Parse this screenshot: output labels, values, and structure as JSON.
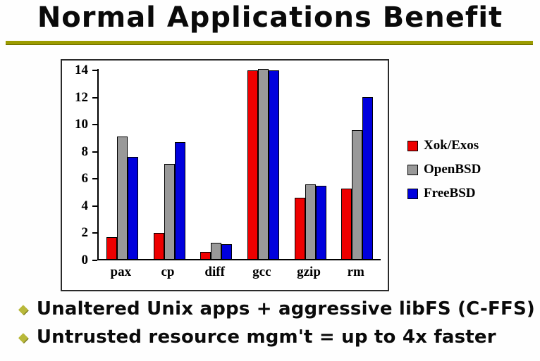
{
  "title": "Normal Applications Benefit",
  "bullets": [
    {
      "marker": "◆",
      "text": "Unaltered Unix apps + aggressive libFS (C-FFS)"
    },
    {
      "marker": "◆",
      "text": "Untrusted resource mgm't = up to 4x faster"
    }
  ],
  "chart_data": {
    "type": "bar",
    "categories": [
      "pax",
      "cp",
      "diff",
      "gcc",
      "gzip",
      "rm"
    ],
    "series": [
      {
        "name": "Xok/Exos",
        "color": "#ee0000",
        "values": [
          1.6,
          1.9,
          0.5,
          13.9,
          4.5,
          5.2
        ]
      },
      {
        "name": "OpenBSD",
        "color": "#999999",
        "values": [
          9.0,
          7.0,
          1.2,
          14.0,
          5.5,
          9.5
        ]
      },
      {
        "name": "FreeBSD",
        "color": "#0000dd",
        "values": [
          7.5,
          8.6,
          1.1,
          13.9,
          5.4,
          11.9
        ]
      }
    ],
    "ylim": [
      0,
      14
    ],
    "yticks": [
      0,
      2,
      4,
      6,
      8,
      10,
      12,
      14
    ],
    "legend_position": "right",
    "grid": false,
    "title": "",
    "xlabel": "",
    "ylabel": ""
  },
  "colors": {
    "underline": "#9c9c00",
    "bullet_marker": "#b9b93a"
  }
}
